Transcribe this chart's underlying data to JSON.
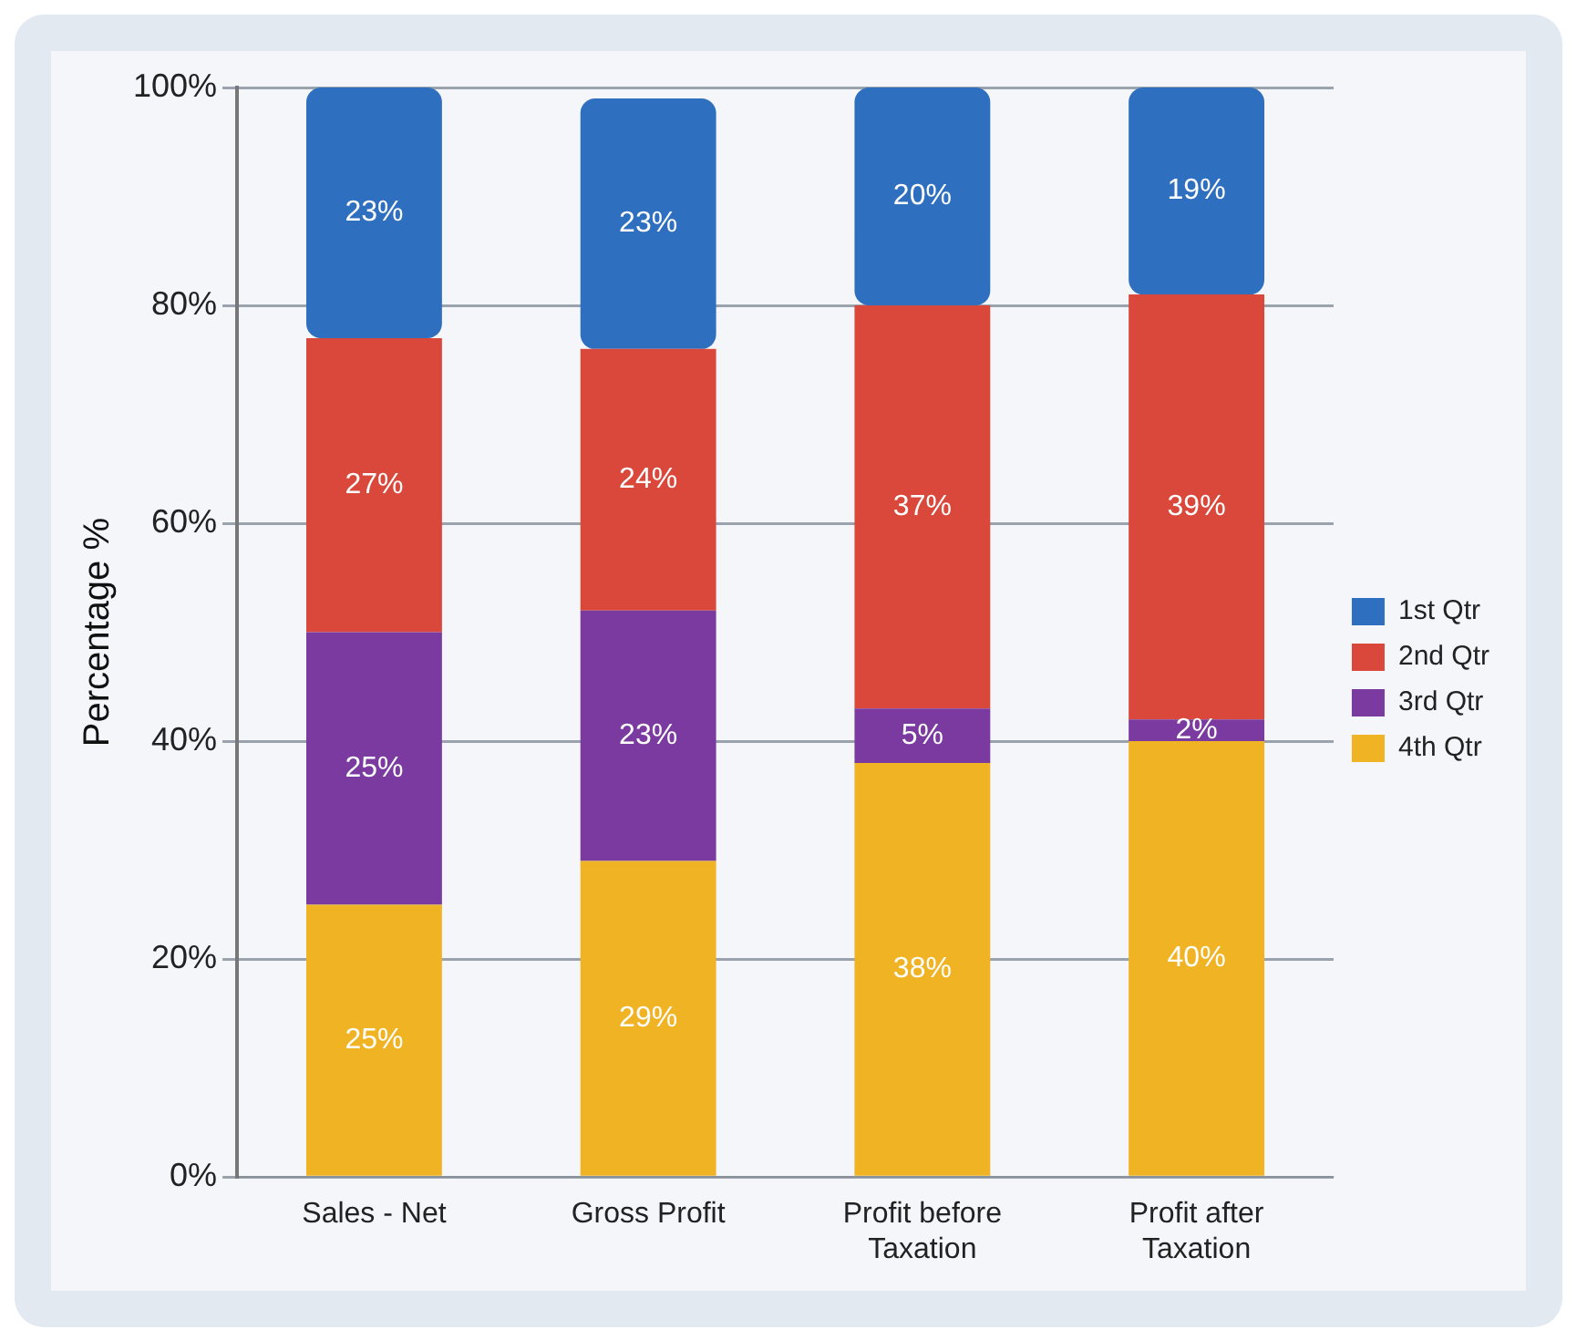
{
  "chart_data": {
    "type": "bar",
    "stacked": true,
    "ylabel": "Percentage %",
    "categories": [
      "Sales - Net",
      "Gross Profit",
      "Profit before Taxation",
      "Profit after Taxation"
    ],
    "series": [
      {
        "name": "4th Qtr",
        "color": "#f0b323",
        "values": [
          25,
          29,
          38,
          40
        ],
        "value_labels": [
          "25%",
          "29%",
          "38%",
          "40%"
        ]
      },
      {
        "name": "3rd Qtr",
        "color": "#7a3aa0",
        "values": [
          25,
          23,
          5,
          2
        ],
        "value_labels": [
          "25%",
          "23%",
          "5%",
          "2%"
        ]
      },
      {
        "name": "2nd Qtr",
        "color": "#d9483b",
        "values": [
          27,
          24,
          37,
          39
        ],
        "value_labels": [
          "27%",
          "24%",
          "37%",
          "39%"
        ]
      },
      {
        "name": "1st Qtr",
        "color": "#2e6fbf",
        "values": [
          23,
          23,
          20,
          19
        ],
        "value_labels": [
          "23%",
          "23%",
          "20%",
          "19%"
        ]
      }
    ],
    "ylim": [
      0,
      100
    ],
    "yticks": [
      {
        "value": 0,
        "label": "0%"
      },
      {
        "value": 20,
        "label": "20%"
      },
      {
        "value": 40,
        "label": "40%"
      },
      {
        "value": 60,
        "label": "60%"
      },
      {
        "value": 80,
        "label": "80%"
      },
      {
        "value": 100,
        "label": "100%"
      }
    ],
    "grid": "y",
    "legend": "right"
  }
}
